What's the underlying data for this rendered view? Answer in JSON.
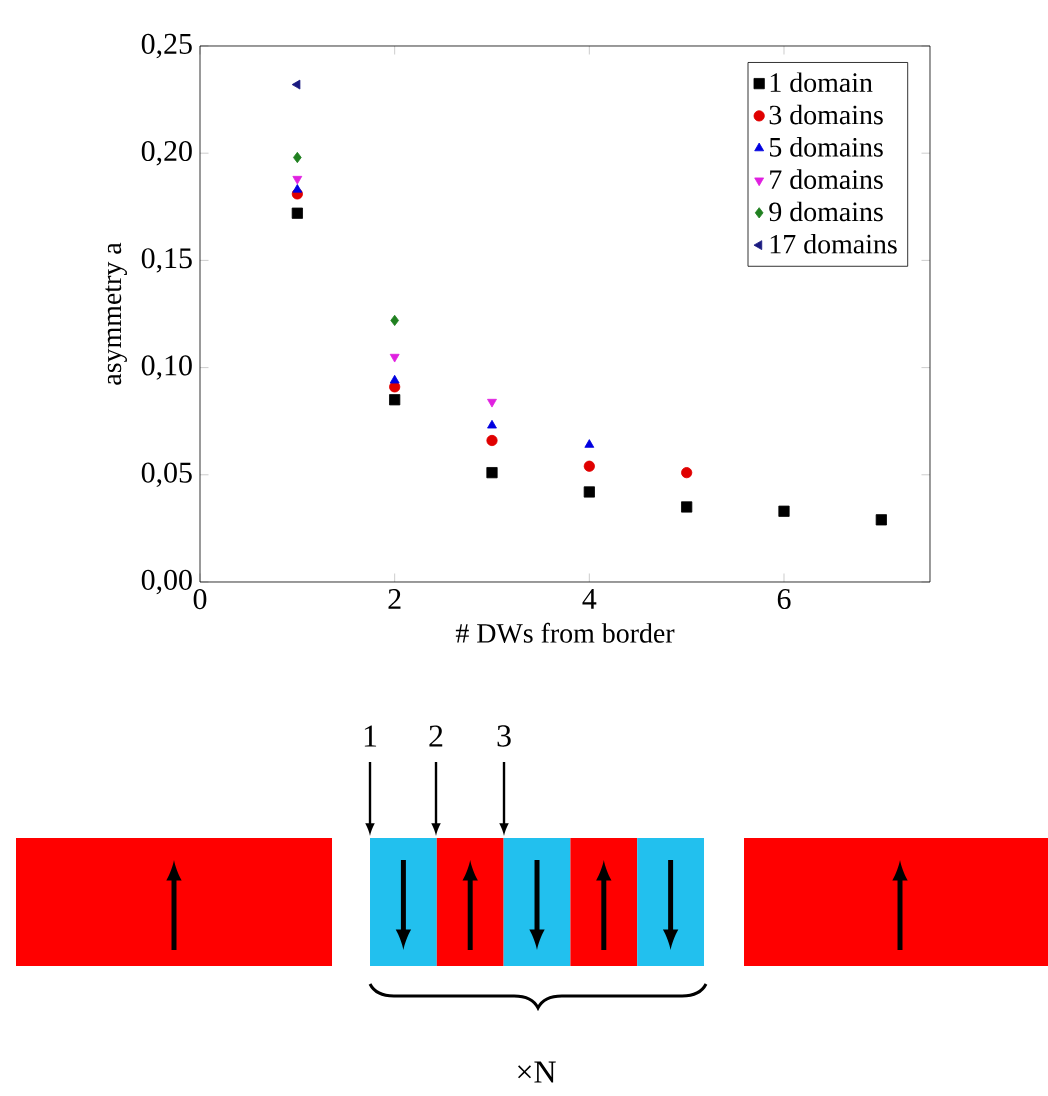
{
  "chart_data": {
    "type": "scatter",
    "xlabel": "# DWs from border",
    "ylabel": "asymmetry  a",
    "xlim": [
      0,
      7.5
    ],
    "xticks": [
      0,
      2,
      4,
      6
    ],
    "ylim": [
      0,
      0.25
    ],
    "yticks": [
      {
        "value": 0,
        "label": "0,00"
      },
      {
        "value": 0.05,
        "label": "0,05"
      },
      {
        "value": 0.1,
        "label": "0,10"
      },
      {
        "value": 0.15,
        "label": "0,15"
      },
      {
        "value": 0.2,
        "label": "0,20"
      },
      {
        "value": 0.25,
        "label": "0,25"
      }
    ],
    "legend": "top right",
    "series": [
      {
        "name": "1 domain",
        "color": "#000000",
        "marker": "square",
        "x": [
          1,
          2,
          3,
          4,
          5,
          6,
          7
        ],
        "values": [
          0.172,
          0.085,
          0.051,
          0.042,
          0.035,
          0.033,
          0.029
        ]
      },
      {
        "name": "3 domains",
        "color": "#e00000",
        "marker": "circle",
        "x": [
          1,
          2,
          3,
          4,
          5
        ],
        "values": [
          0.181,
          0.091,
          0.066,
          0.054,
          0.051
        ]
      },
      {
        "name": "5 domains",
        "color": "#0000e0",
        "marker": "triangle",
        "x": [
          1,
          2,
          3,
          4
        ],
        "values": [
          0.183,
          0.094,
          0.073,
          0.064
        ]
      },
      {
        "name": "7 domains",
        "color": "#e020e0",
        "marker": "triangle-down",
        "x": [
          1,
          2,
          3
        ],
        "values": [
          0.188,
          0.105,
          0.084
        ]
      },
      {
        "name": "9 domains",
        "color": "#208020",
        "marker": "diamond",
        "x": [
          1,
          2
        ],
        "values": [
          0.198,
          0.122
        ]
      },
      {
        "name": "17 domains",
        "color": "#1a1a80",
        "marker": "triangle-left",
        "x": [
          1
        ],
        "values": [
          0.232
        ]
      }
    ],
    "annotations": [
      "1",
      "2",
      "3",
      "×N"
    ]
  }
}
